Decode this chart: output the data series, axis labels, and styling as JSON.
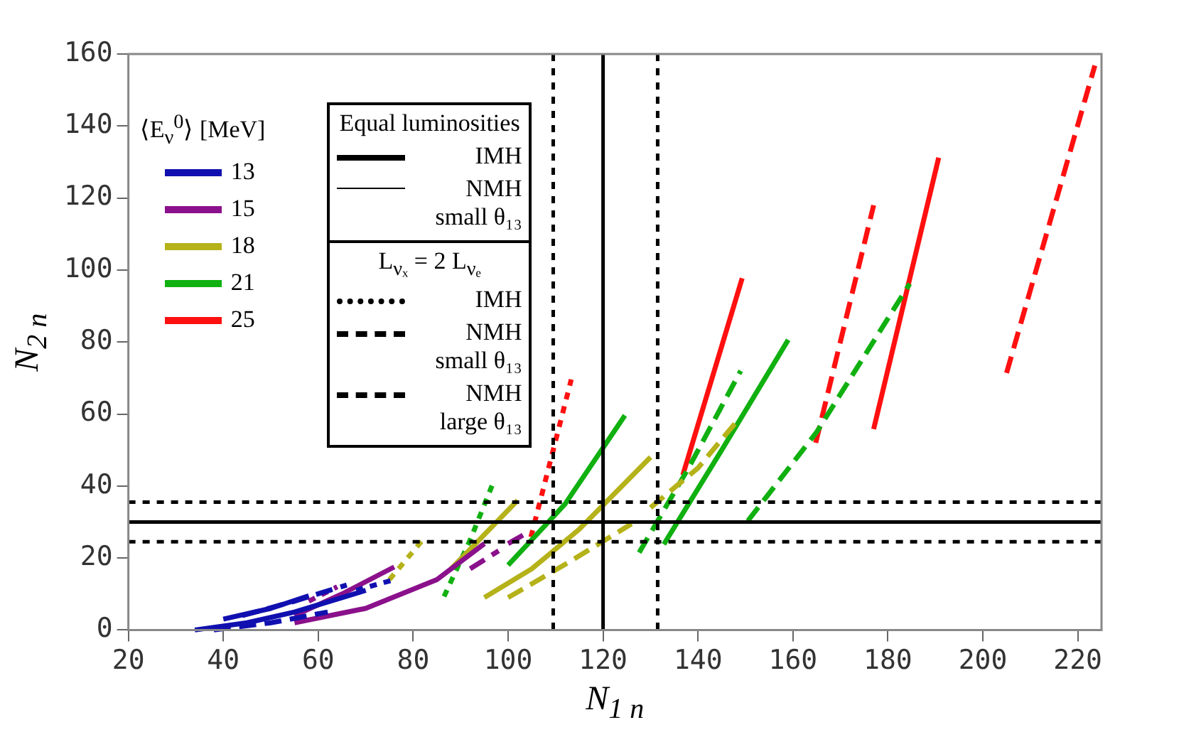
{
  "chart_data": {
    "type": "line",
    "xlabel": "N$_{1 n}$",
    "ylabel": "N$_{2 n}$",
    "legend_title": "⟨E$_{ν}$$^{0}$⟩ [MeV]",
    "grid": false,
    "marker": "none",
    "xlim": [
      20,
      225
    ],
    "xticks": [
      20,
      40,
      60,
      80,
      100,
      120,
      140,
      160,
      180,
      200,
      220
    ],
    "ylim": [
      0,
      160
    ],
    "yticks": [
      0,
      20,
      40,
      60,
      80,
      100,
      120,
      140,
      160
    ],
    "annotations": [
      "13",
      "15",
      "18",
      "21",
      "25",
      "Equal luminosities",
      "IMH",
      "NMH small θ₁₃",
      "L$_{νₓ}$ = 2 L$_{νₑ}$",
      "IMH",
      "NMH small θ₁₃",
      "NMH large θ₁₃"
    ],
    "ref_lines": [
      {
        "axis": "y",
        "value": 30,
        "line_style": "solid"
      },
      {
        "axis": "y",
        "value": 35.5,
        "line_style": "dotted"
      },
      {
        "axis": "y",
        "value": 24.5,
        "line_style": "dotted"
      },
      {
        "axis": "x",
        "value": 120,
        "line_style": "solid"
      },
      {
        "axis": "x",
        "value": 109.5,
        "line_style": "dotted"
      },
      {
        "axis": "x",
        "value": 131.5,
        "line_style": "dotted"
      }
    ],
    "series": [
      {
        "color": "#1010b0",
        "line_style": "solid",
        "x": [
          34,
          45,
          55,
          65,
          70
        ],
        "values": [
          0,
          2,
          5,
          9,
          11
        ]
      },
      {
        "color": "#1010b0",
        "line_style": "solid",
        "x": [
          40,
          50,
          58
        ],
        "values": [
          3,
          6,
          9.5
        ]
      },
      {
        "color": "#1010b0",
        "line_style": "dotted",
        "x": [
          68,
          76
        ],
        "values": [
          11,
          14
        ]
      },
      {
        "color": "#1010b0",
        "line_style": "dashed",
        "x": [
          44,
          55,
          66
        ],
        "values": [
          4,
          8,
          12.5
        ]
      },
      {
        "color": "#1010b0",
        "line_style": "dashed",
        "x": [
          38,
          50,
          62
        ],
        "values": [
          0,
          2,
          5
        ]
      },
      {
        "color": "#8b108b",
        "line_style": "solid",
        "x": [
          55,
          70,
          85,
          95
        ],
        "values": [
          2,
          6,
          14,
          24
        ]
      },
      {
        "color": "#8b108b",
        "line_style": "solid",
        "x": [
          55,
          65,
          76
        ],
        "values": [
          4,
          10,
          17.5
        ]
      },
      {
        "color": "#8b108b",
        "line_style": "dotted",
        "x": [
          58,
          64
        ],
        "values": [
          8,
          12
        ]
      },
      {
        "color": "#8b108b",
        "line_style": "dashed",
        "x": [
          92,
          98
        ],
        "values": [
          17,
          22
        ]
      },
      {
        "color": "#8b108b",
        "line_style": "dashed",
        "x": [
          100,
          104
        ],
        "values": [
          24,
          27
        ]
      },
      {
        "color": "#b5b21a",
        "line_style": "solid",
        "x": [
          95,
          105,
          115,
          130
        ],
        "values": [
          9,
          17,
          28,
          48
        ]
      },
      {
        "color": "#b5b21a",
        "line_style": "solid",
        "x": [
          88,
          102
        ],
        "values": [
          17,
          36
        ]
      },
      {
        "color": "#b5b21a",
        "line_style": "dotted",
        "x": [
          75,
          82
        ],
        "values": [
          14,
          25
        ]
      },
      {
        "color": "#b5b21a",
        "line_style": "dashed",
        "x": [
          100,
          113,
          126
        ],
        "values": [
          9,
          19,
          29.5
        ]
      },
      {
        "color": "#b5b21a",
        "line_style": "dashed",
        "x": [
          130,
          140,
          148
        ],
        "values": [
          34,
          45,
          57.7
        ]
      },
      {
        "color": "#10b010",
        "line_style": "solid",
        "x": [
          132.8,
          145,
          159
        ],
        "values": [
          23.8,
          50,
          80.6
        ]
      },
      {
        "color": "#10b010",
        "line_style": "solid",
        "x": [
          100,
          112,
          124.6
        ],
        "values": [
          18,
          35,
          59.6
        ]
      },
      {
        "color": "#10b010",
        "line_style": "dotted",
        "x": [
          86.5,
          92,
          97.1
        ],
        "values": [
          9.3,
          25,
          41.7
        ]
      },
      {
        "color": "#10b010",
        "line_style": "dashed",
        "x": [
          127.6,
          138,
          149
        ],
        "values": [
          21.5,
          45,
          72
        ]
      },
      {
        "color": "#10b010",
        "line_style": "dashed",
        "x": [
          150.5,
          165,
          184.6
        ],
        "values": [
          30.3,
          55,
          96.2
        ]
      },
      {
        "color": "#ff1010",
        "line_style": "solid",
        "x": [
          177,
          190.7
        ],
        "values": [
          55.8,
          131.2
        ]
      },
      {
        "color": "#ff1010",
        "line_style": "solid",
        "x": [
          136.8,
          149.3
        ],
        "values": [
          43,
          97.7
        ]
      },
      {
        "color": "#ff1010",
        "line_style": "dotted",
        "x": [
          104.8,
          113.3
        ],
        "values": [
          25.8,
          69.6
        ]
      },
      {
        "color": "#ff1010",
        "line_style": "dashed",
        "x": [
          164.8,
          177
        ],
        "values": [
          52,
          118
        ]
      },
      {
        "color": "#ff1010",
        "line_style": "dashed",
        "x": [
          205,
          223.6
        ],
        "values": [
          71.4,
          156.8
        ]
      }
    ]
  }
}
